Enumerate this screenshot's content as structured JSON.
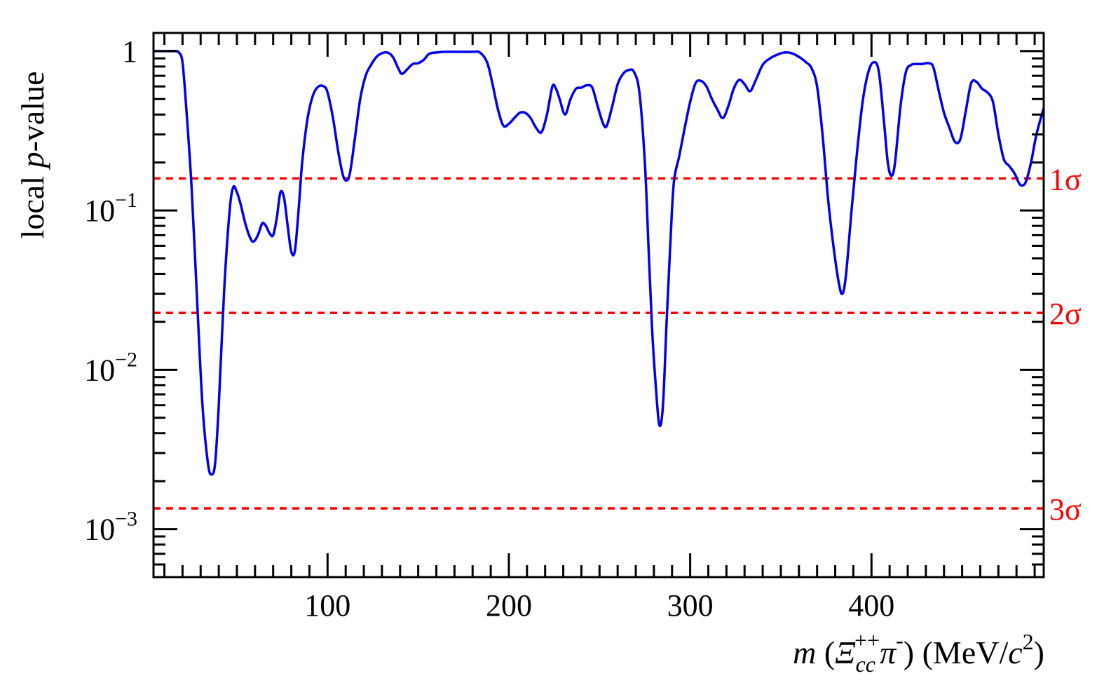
{
  "chart_data": {
    "type": "line",
    "title": "",
    "xlabel": "m (Ξcc++ π-) (MeV/c2)",
    "xlabel_parts": {
      "var": "m",
      "open": " (",
      "particle": "Ξ",
      "particle_sub": "cc",
      "particle_sup": "++",
      "pion": "π",
      "pion_sup": "-",
      "close": ")",
      "units_open": " (MeV/",
      "units_var": "c",
      "units_sup": "2",
      "units_close": ")"
    },
    "ylabel": "local p-value",
    "ylabel_parts": {
      "pre": "local ",
      "var": "p",
      "post": "-value"
    },
    "xlim": [
      4,
      495
    ],
    "ylim": [
      0.0005,
      1.3
    ],
    "yscale": "log",
    "x_ticks": [
      {
        "value": 100,
        "label": "100"
      },
      {
        "value": 200,
        "label": "200"
      },
      {
        "value": 300,
        "label": "300"
      },
      {
        "value": 400,
        "label": "400"
      }
    ],
    "y_ticks": [
      {
        "value": 1,
        "label": "1",
        "base": "",
        "exp": ""
      },
      {
        "value": 0.1,
        "label": "10^-1",
        "base": "10",
        "exp": "−1"
      },
      {
        "value": 0.01,
        "label": "10^-2",
        "base": "10",
        "exp": "−2"
      },
      {
        "value": 0.001,
        "label": "10^-3",
        "base": "10",
        "exp": "−3"
      }
    ],
    "reference_lines": [
      {
        "label": "1σ",
        "value": 0.1587
      },
      {
        "label": "2σ",
        "value": 0.02275
      },
      {
        "label": "3σ",
        "value": 0.00135
      }
    ],
    "colors": {
      "curve": "#0000ee",
      "reference": "#ff0000",
      "axis": "#000000"
    },
    "series": [
      {
        "name": "local p-value",
        "x": [
          4,
          8,
          14,
          16,
          18,
          20,
          22,
          25,
          28,
          31,
          34,
          36,
          38,
          40,
          43,
          46,
          48,
          50,
          52,
          55,
          58,
          60,
          62,
          64,
          66,
          68,
          70,
          72,
          74,
          76,
          78,
          80,
          82,
          84,
          86,
          89,
          92,
          95,
          98,
          100,
          103,
          106,
          109,
          112,
          115,
          118,
          121,
          124,
          127,
          130,
          133,
          136,
          139,
          141,
          144,
          147,
          150,
          153,
          156,
          160,
          165,
          170,
          175,
          180,
          184,
          188,
          191,
          194,
          197,
          200,
          203,
          206,
          209,
          212,
          215,
          218,
          221,
          224,
          226,
          228,
          231,
          234,
          237,
          240,
          243,
          246,
          249,
          252,
          254,
          257,
          260,
          263,
          266,
          269,
          272,
          275,
          277,
          279,
          281,
          283,
          285,
          287,
          289,
          291,
          294,
          297,
          300,
          303,
          306,
          309,
          312,
          315,
          318,
          321,
          324,
          327,
          330,
          333,
          336,
          340,
          344,
          348,
          352,
          356,
          360,
          364,
          367,
          370,
          373,
          376,
          379,
          382,
          384,
          386,
          389,
          392,
          395,
          398,
          401,
          404,
          407,
          409,
          411,
          413,
          416,
          419,
          422,
          425,
          428,
          431,
          434,
          437,
          440,
          443,
          446,
          449,
          452,
          455,
          458,
          461,
          464,
          467,
          470,
          473,
          476,
          479,
          482,
          485,
          488,
          491,
          495
        ],
        "y": [
          1,
          1,
          1,
          1,
          0.98,
          0.85,
          0.45,
          0.14,
          0.028,
          0.006,
          0.0026,
          0.0022,
          0.0026,
          0.006,
          0.032,
          0.1,
          0.14,
          0.13,
          0.11,
          0.08,
          0.065,
          0.065,
          0.072,
          0.083,
          0.08,
          0.072,
          0.07,
          0.09,
          0.13,
          0.12,
          0.08,
          0.055,
          0.056,
          0.1,
          0.2,
          0.38,
          0.53,
          0.6,
          0.6,
          0.55,
          0.38,
          0.23,
          0.16,
          0.165,
          0.28,
          0.5,
          0.7,
          0.82,
          0.92,
          0.97,
          0.98,
          0.92,
          0.78,
          0.72,
          0.77,
          0.83,
          0.84,
          0.88,
          0.96,
          0.98,
          0.99,
          0.99,
          0.99,
          0.99,
          0.98,
          0.85,
          0.62,
          0.43,
          0.34,
          0.35,
          0.38,
          0.41,
          0.41,
          0.38,
          0.33,
          0.31,
          0.4,
          0.6,
          0.58,
          0.5,
          0.4,
          0.5,
          0.58,
          0.59,
          0.61,
          0.59,
          0.45,
          0.35,
          0.34,
          0.45,
          0.62,
          0.72,
          0.76,
          0.74,
          0.55,
          0.2,
          0.06,
          0.018,
          0.008,
          0.0045,
          0.006,
          0.02,
          0.06,
          0.15,
          0.22,
          0.33,
          0.48,
          0.63,
          0.65,
          0.6,
          0.5,
          0.43,
          0.38,
          0.45,
          0.58,
          0.66,
          0.62,
          0.56,
          0.65,
          0.82,
          0.9,
          0.95,
          0.98,
          0.97,
          0.92,
          0.85,
          0.78,
          0.6,
          0.3,
          0.12,
          0.06,
          0.035,
          0.03,
          0.04,
          0.1,
          0.23,
          0.47,
          0.72,
          0.85,
          0.75,
          0.35,
          0.2,
          0.165,
          0.2,
          0.45,
          0.74,
          0.82,
          0.83,
          0.83,
          0.84,
          0.8,
          0.57,
          0.41,
          0.33,
          0.27,
          0.28,
          0.42,
          0.63,
          0.64,
          0.58,
          0.55,
          0.48,
          0.3,
          0.21,
          0.19,
          0.17,
          0.145,
          0.15,
          0.2,
          0.3,
          0.44
        ]
      }
    ]
  }
}
